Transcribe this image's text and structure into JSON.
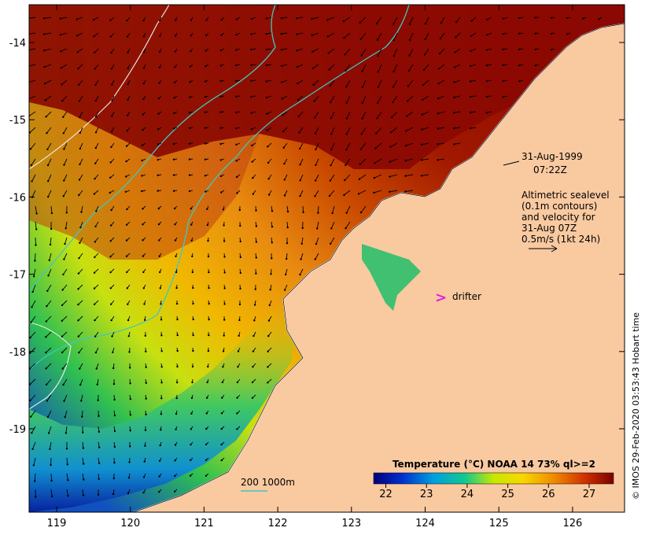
{
  "map": {
    "x_ticks": [
      "119",
      "120",
      "121",
      "122",
      "123",
      "124",
      "125",
      "126"
    ],
    "y_ticks": [
      "-14",
      "-15",
      "-16",
      "-17",
      "-18",
      "-19"
    ],
    "timestamp_date": "31-Aug-1999",
    "timestamp_time": "07:22Z",
    "altimetry_note": [
      "Altimetric sealevel",
      "(0.1m contours)",
      "and velocity for",
      "31-Aug 07Z",
      "0.5m/s (1kt 24h)"
    ],
    "drifter_label": "drifter",
    "drifter_marker": ">",
    "bathymetry_label": "200  1000m",
    "credit": "© IMOS 29-Feb-2020 03:53:43 Hobart time",
    "colors": {
      "land": "#f9c9a0",
      "warm_sea": "#8b0a02",
      "contour": "#3fc8c0",
      "drifter": "#e020d8"
    }
  },
  "colorbar": {
    "title": "Temperature (°C) NOAA 14 73% ql>=2",
    "ticks": [
      "22",
      "23",
      "24",
      "25",
      "26",
      "27"
    ],
    "range": [
      21.7,
      27.6
    ]
  }
}
